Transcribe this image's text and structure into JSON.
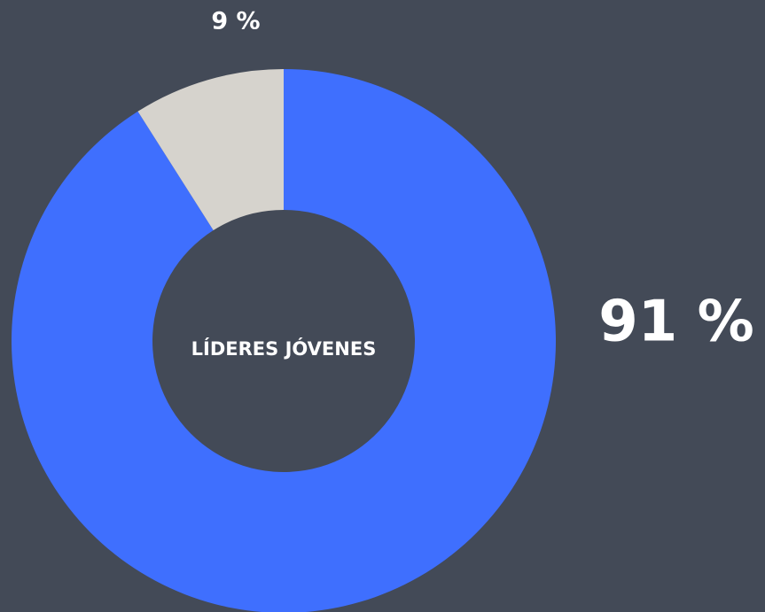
{
  "chart_data": {
    "type": "donut",
    "title": "LÍDERES JÓVENES",
    "values": [
      91,
      9
    ],
    "value_labels": [
      "91 %",
      "9 %"
    ],
    "colors": [
      "#3f6ffe",
      "#d6d3cd"
    ]
  }
}
